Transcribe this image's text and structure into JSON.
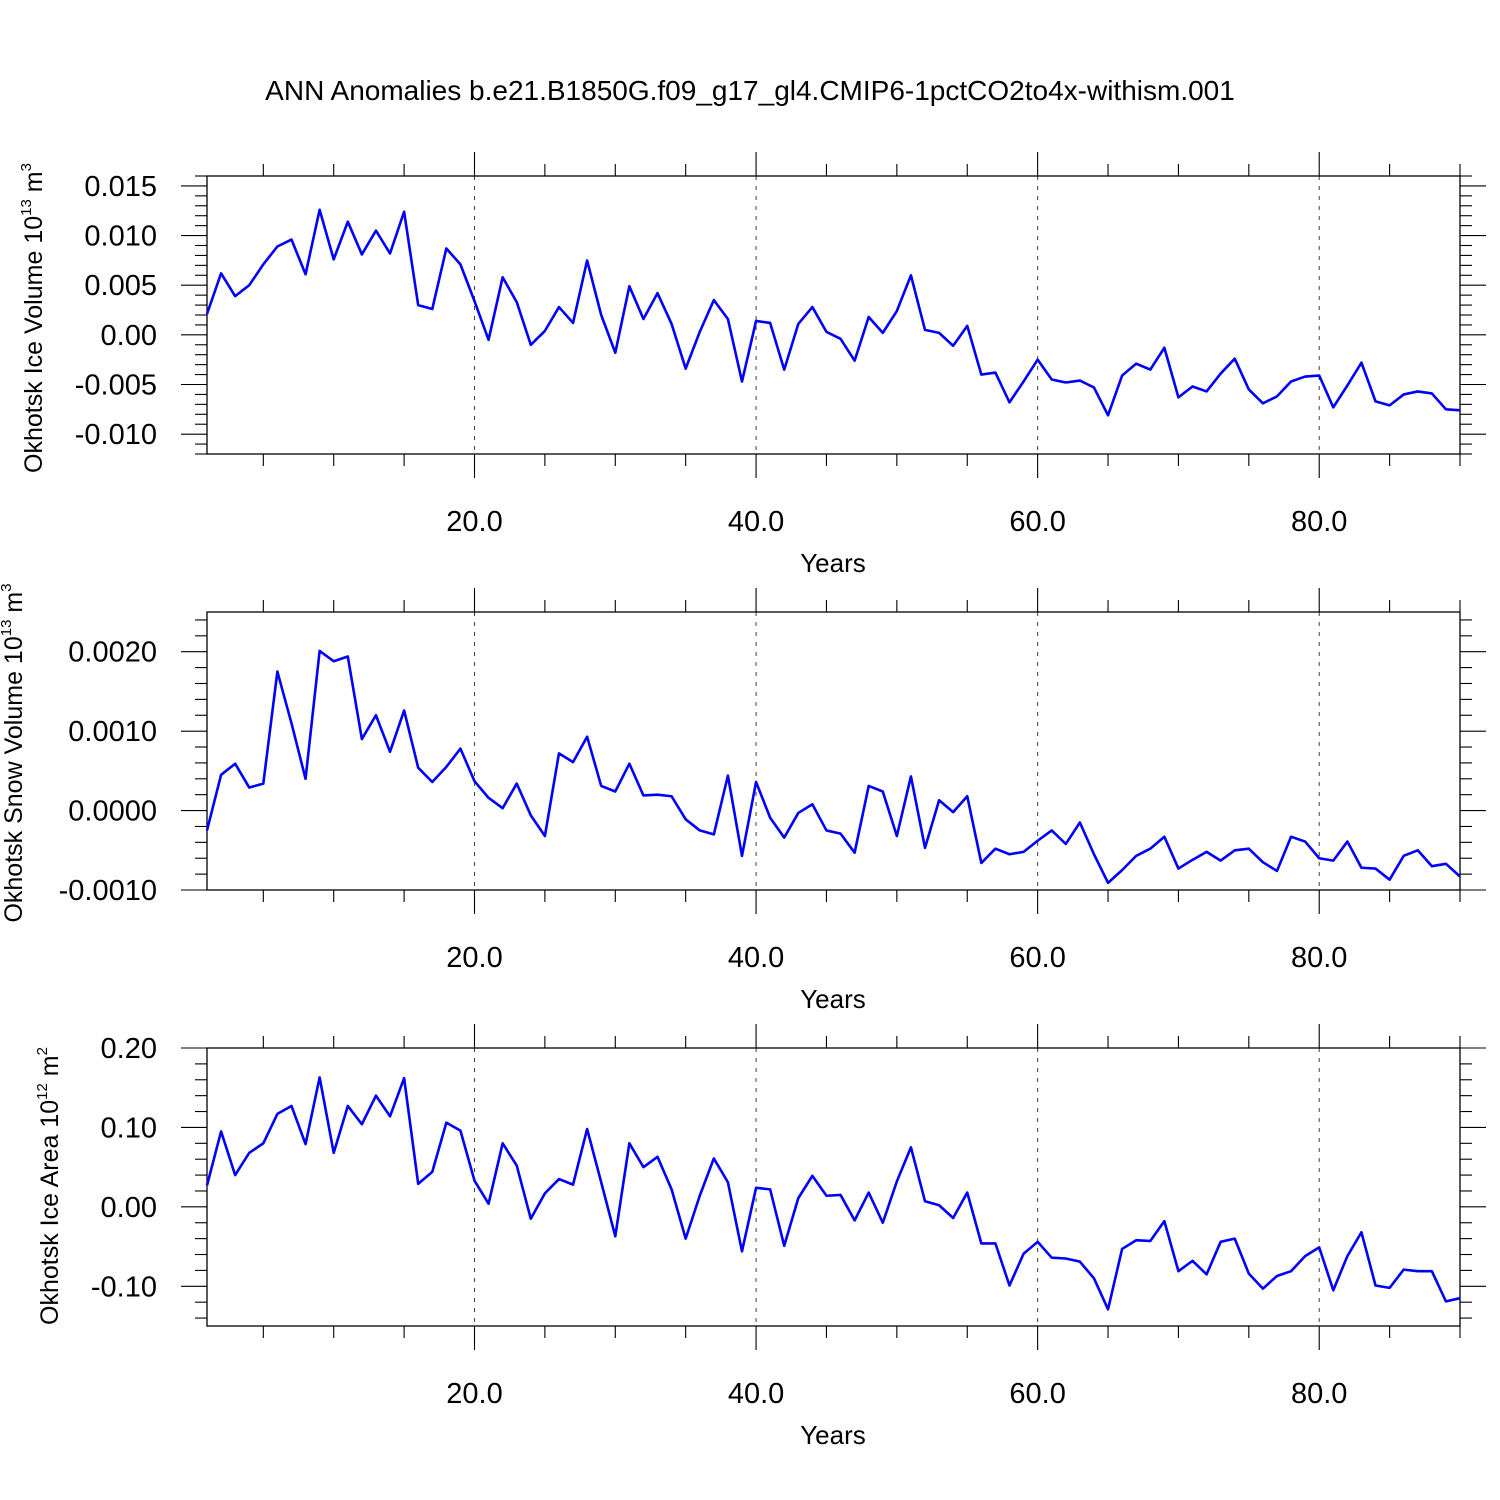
{
  "title": "ANN Anomalies b.e21.B1850G.f09_g17_gl4.CMIP6-1pctCO2to4x-withism.001",
  "colors": {
    "series": "#0000ff",
    "axis": "#000000",
    "grid": "#000000"
  },
  "chart_data": [
    {
      "type": "line",
      "ylabel": {
        "text": "Okhotsk Ice Volume 10",
        "exp": "13",
        "unit": " m",
        "unit_exp": "3"
      },
      "xlabel": "Years",
      "xlim": [
        1,
        90
      ],
      "ylim": [
        -0.012,
        0.016
      ],
      "xticks": [
        20,
        40,
        60,
        80
      ],
      "xtick_labels": [
        "20.0",
        "40.0",
        "60.0",
        "80.0"
      ],
      "yticks": [
        0.015,
        0.01,
        0.005,
        0.0,
        -0.005,
        -0.01
      ],
      "ytick_labels": [
        "0.015",
        "0.010",
        "0.005",
        "0.00",
        "-0.005",
        "-0.010"
      ],
      "grid": "dashed vertical at x ticks",
      "series": [
        {
          "color": "#0000ff",
          "x": [
            1,
            2,
            3,
            4,
            5,
            6,
            7,
            8,
            9,
            10,
            11,
            12,
            13,
            14,
            15,
            16,
            17,
            18,
            19,
            20,
            21,
            22,
            23,
            24,
            25,
            26,
            27,
            28,
            29,
            30,
            31,
            32,
            33,
            34,
            35,
            36,
            37,
            38,
            39,
            40,
            41,
            42,
            43,
            44,
            45,
            46,
            47,
            48,
            49,
            50,
            51,
            52,
            53,
            54,
            55,
            56,
            57,
            58,
            59,
            60,
            61,
            62,
            63,
            64,
            65,
            66,
            67,
            68,
            69,
            70,
            71,
            72,
            73,
            74,
            75,
            76,
            77,
            78,
            79,
            80,
            81,
            82,
            83,
            84,
            85,
            86,
            87,
            88,
            89,
            90
          ],
          "values": [
            0.0021,
            0.0062,
            0.0039,
            0.005,
            0.0071,
            0.0089,
            0.0096,
            0.0061,
            0.0126,
            0.0076,
            0.0114,
            0.0081,
            0.0105,
            0.0082,
            0.0124,
            0.003,
            0.0026,
            0.0087,
            0.0071,
            0.0034,
            -0.0005,
            0.0058,
            0.0033,
            -0.001,
            0.0004,
            0.0028,
            0.0012,
            0.0075,
            0.002,
            -0.0018,
            0.0049,
            0.0016,
            0.0042,
            0.0011,
            -0.0034,
            0.0003,
            0.0035,
            0.0016,
            -0.0047,
            0.0014,
            0.0012,
            -0.0035,
            0.0011,
            0.0028,
            0.0003,
            -0.0004,
            -0.0026,
            0.0018,
            0.0002,
            0.0024,
            0.006,
            0.0005,
            0.0002,
            -0.0011,
            0.0009,
            -0.004,
            -0.0038,
            -0.0068,
            -0.0047,
            -0.0025,
            -0.0045,
            -0.0048,
            -0.0046,
            -0.0053,
            -0.0081,
            -0.0041,
            -0.0029,
            -0.0035,
            -0.0013,
            -0.0063,
            -0.0052,
            -0.0057,
            -0.0039,
            -0.0024,
            -0.0055,
            -0.0069,
            -0.0062,
            -0.0047,
            -0.0042,
            -0.0041,
            -0.0073,
            -0.0051,
            -0.0028,
            -0.0067,
            -0.0071,
            -0.006,
            -0.0057,
            -0.0059,
            -0.0075,
            -0.0076
          ]
        }
      ]
    },
    {
      "type": "line",
      "ylabel": {
        "text": "Okhotsk Snow Volume 10",
        "exp": "13",
        "unit": " m",
        "unit_exp": "3"
      },
      "xlabel": "Years",
      "xlim": [
        1,
        90
      ],
      "ylim": [
        -0.001,
        0.0025
      ],
      "xticks": [
        20,
        40,
        60,
        80
      ],
      "xtick_labels": [
        "20.0",
        "40.0",
        "60.0",
        "80.0"
      ],
      "yticks": [
        0.002,
        0.001,
        0.0,
        -0.001
      ],
      "ytick_labels": [
        "0.0020",
        "0.0010",
        "0.0000",
        "-0.0010"
      ],
      "grid": "dashed vertical at x ticks",
      "series": [
        {
          "color": "#0000ff",
          "x": [
            1,
            2,
            3,
            4,
            5,
            6,
            7,
            8,
            9,
            10,
            11,
            12,
            13,
            14,
            15,
            16,
            17,
            18,
            19,
            20,
            21,
            22,
            23,
            24,
            25,
            26,
            27,
            28,
            29,
            30,
            31,
            32,
            33,
            34,
            35,
            36,
            37,
            38,
            39,
            40,
            41,
            42,
            43,
            44,
            45,
            46,
            47,
            48,
            49,
            50,
            51,
            52,
            53,
            54,
            55,
            56,
            57,
            58,
            59,
            60,
            61,
            62,
            63,
            64,
            65,
            66,
            67,
            68,
            69,
            70,
            71,
            72,
            73,
            74,
            75,
            76,
            77,
            78,
            79,
            80,
            81,
            82,
            83,
            84,
            85,
            86,
            87,
            88,
            89,
            90
          ],
          "values": [
            -0.00025,
            0.00045,
            0.00059,
            0.00029,
            0.00034,
            0.00175,
            0.0011,
            0.0004,
            0.00201,
            0.00188,
            0.00194,
            0.0009,
            0.0012,
            0.00074,
            0.00126,
            0.00054,
            0.00036,
            0.00055,
            0.00078,
            0.00037,
            0.00016,
            3e-05,
            0.00034,
            -6e-05,
            -0.00032,
            0.00072,
            0.00061,
            0.00093,
            0.00031,
            0.00024,
            0.00059,
            0.00019,
            0.0002,
            0.00018,
            -0.00011,
            -0.00025,
            -0.0003,
            0.00044,
            -0.00057,
            0.00036,
            -9e-05,
            -0.00034,
            -3e-05,
            8e-05,
            -0.00025,
            -0.00029,
            -0.00053,
            0.00031,
            0.00024,
            -0.00032,
            0.00043,
            -0.00047,
            0.00013,
            -2e-05,
            0.00018,
            -0.00066,
            -0.00048,
            -0.00055,
            -0.00052,
            -0.00038,
            -0.00025,
            -0.00042,
            -0.00015,
            -0.00055,
            -0.00091,
            -0.00075,
            -0.00057,
            -0.00048,
            -0.00033,
            -0.00073,
            -0.00062,
            -0.00052,
            -0.00063,
            -0.0005,
            -0.00048,
            -0.00065,
            -0.00076,
            -0.00033,
            -0.00039,
            -0.0006,
            -0.00063,
            -0.00039,
            -0.00072,
            -0.00073,
            -0.00087,
            -0.00057,
            -0.0005,
            -0.0007,
            -0.00067,
            -0.00083
          ]
        }
      ]
    },
    {
      "type": "line",
      "ylabel": {
        "text": "Okhotsk Ice Area 10",
        "exp": "12",
        "unit": " m",
        "unit_exp": "2"
      },
      "xlabel": "Years",
      "xlim": [
        1,
        90
      ],
      "ylim": [
        -0.15,
        0.2
      ],
      "xticks": [
        20,
        40,
        60,
        80
      ],
      "xtick_labels": [
        "20.0",
        "40.0",
        "60.0",
        "80.0"
      ],
      "yticks": [
        0.2,
        0.1,
        0.0,
        -0.1
      ],
      "ytick_labels": [
        "0.20",
        "0.10",
        "0.00",
        "-0.10"
      ],
      "grid": "dashed vertical at x ticks",
      "series": [
        {
          "color": "#0000ff",
          "x": [
            1,
            2,
            3,
            4,
            5,
            6,
            7,
            8,
            9,
            10,
            11,
            12,
            13,
            14,
            15,
            16,
            17,
            18,
            19,
            20,
            21,
            22,
            23,
            24,
            25,
            26,
            27,
            28,
            29,
            30,
            31,
            32,
            33,
            34,
            35,
            36,
            37,
            38,
            39,
            40,
            41,
            42,
            43,
            44,
            45,
            46,
            47,
            48,
            49,
            50,
            51,
            52,
            53,
            54,
            55,
            56,
            57,
            58,
            59,
            60,
            61,
            62,
            63,
            64,
            65,
            66,
            67,
            68,
            69,
            70,
            71,
            72,
            73,
            74,
            75,
            76,
            77,
            78,
            79,
            80,
            81,
            82,
            83,
            84,
            85,
            86,
            87,
            88,
            89,
            90
          ],
          "values": [
            0.027,
            0.095,
            0.04,
            0.068,
            0.08,
            0.117,
            0.127,
            0.079,
            0.163,
            0.068,
            0.127,
            0.104,
            0.14,
            0.114,
            0.162,
            0.029,
            0.044,
            0.106,
            0.096,
            0.033,
            0.004,
            0.08,
            0.052,
            -0.015,
            0.017,
            0.035,
            0.028,
            0.098,
            0.031,
            -0.037,
            0.08,
            0.05,
            0.063,
            0.022,
            -0.04,
            0.014,
            0.061,
            0.031,
            -0.056,
            0.024,
            0.022,
            -0.049,
            0.011,
            0.039,
            0.014,
            0.015,
            -0.017,
            0.018,
            -0.02,
            0.032,
            0.075,
            0.007,
            0.002,
            -0.014,
            0.018,
            -0.046,
            -0.046,
            -0.099,
            -0.059,
            -0.044,
            -0.064,
            -0.065,
            -0.069,
            -0.09,
            -0.129,
            -0.053,
            -0.042,
            -0.043,
            -0.018,
            -0.081,
            -0.068,
            -0.085,
            -0.044,
            -0.04,
            -0.084,
            -0.103,
            -0.087,
            -0.081,
            -0.062,
            -0.051,
            -0.105,
            -0.062,
            -0.032,
            -0.099,
            -0.102,
            -0.079,
            -0.081,
            -0.081,
            -0.119,
            -0.115
          ]
        }
      ]
    }
  ]
}
